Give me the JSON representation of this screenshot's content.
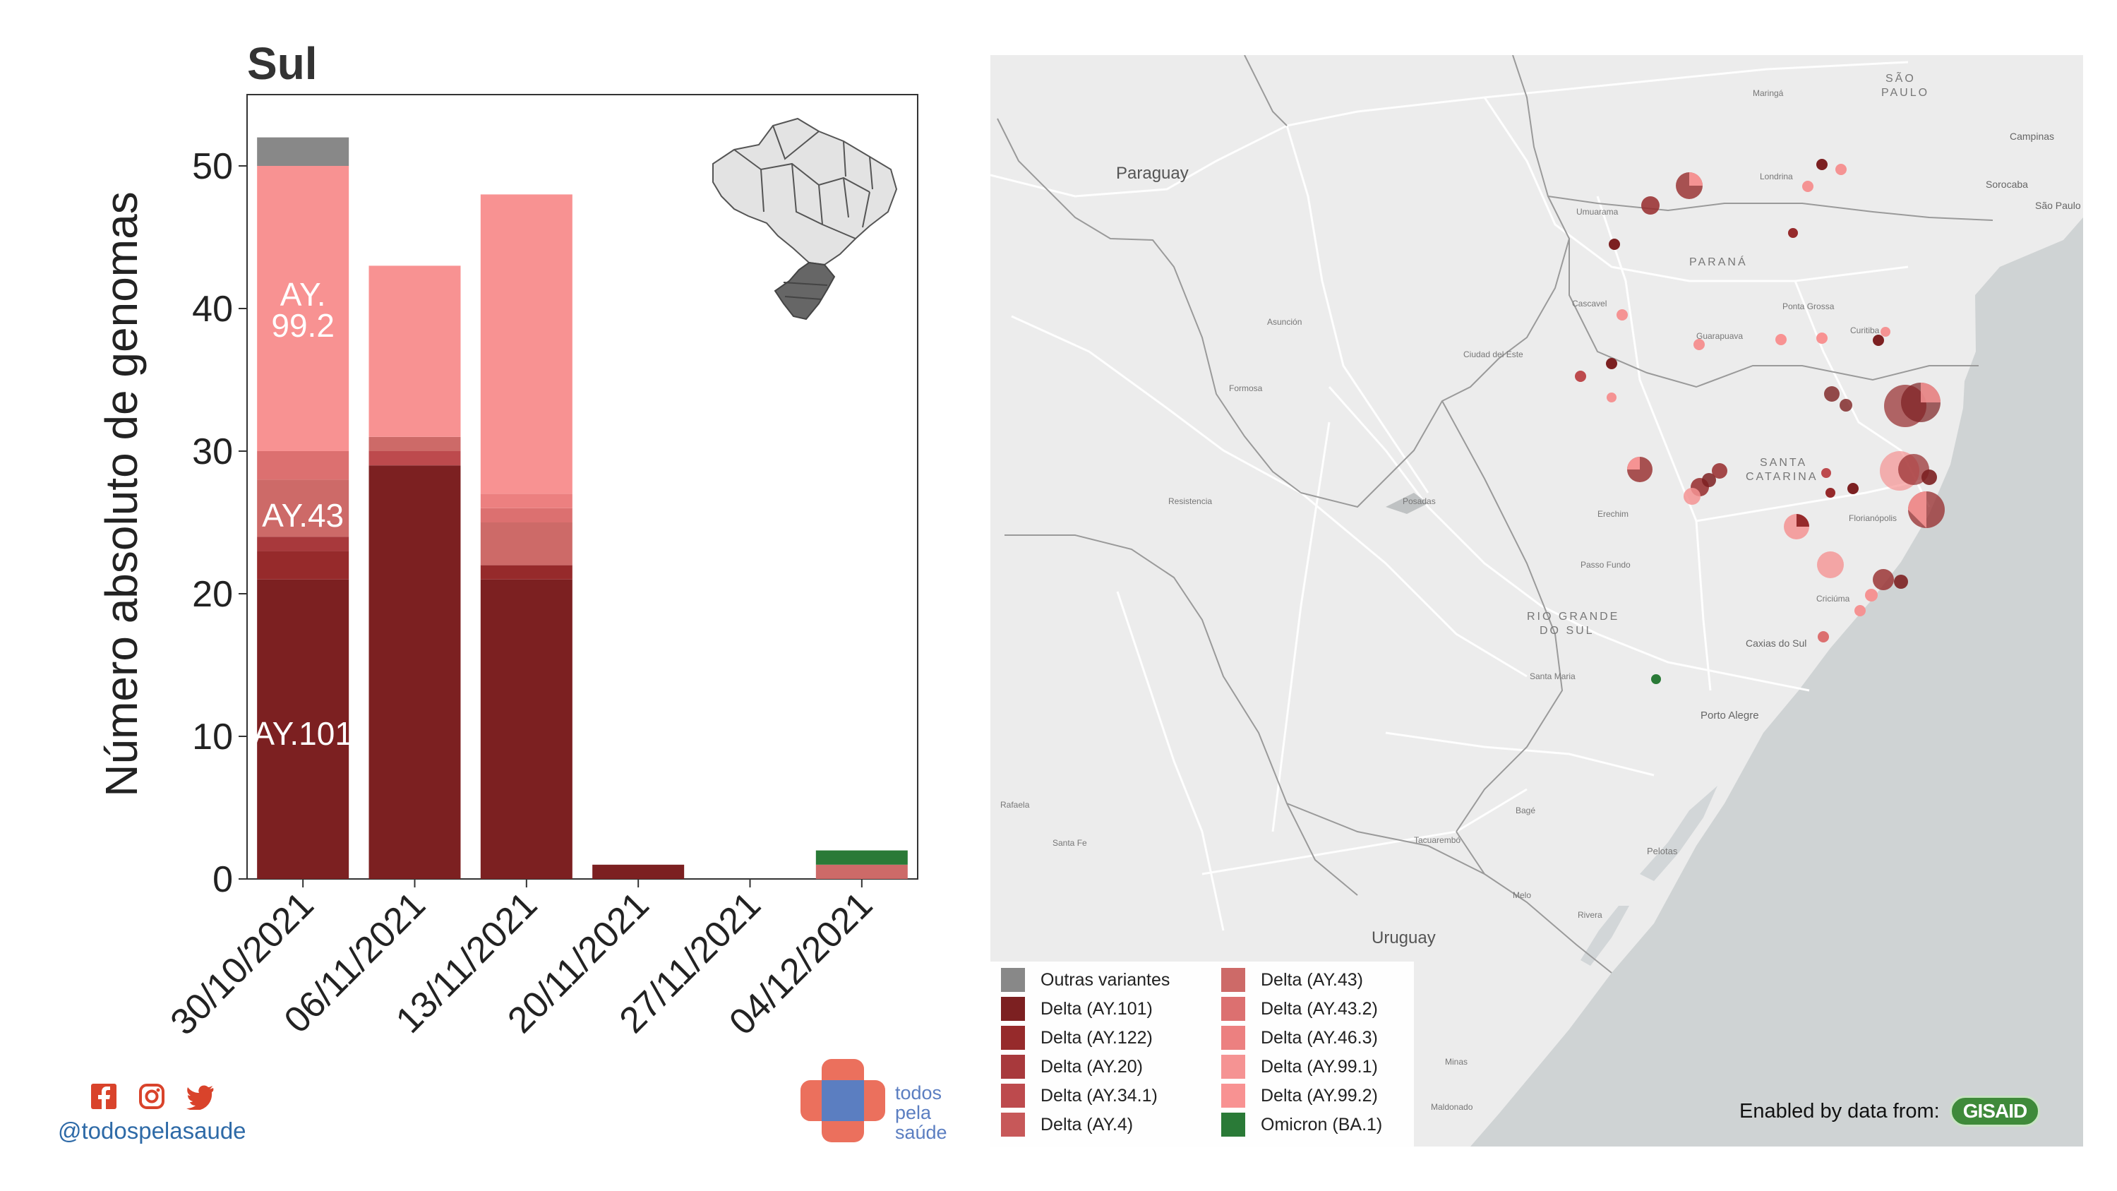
{
  "chart_data": {
    "type": "bar",
    "stacked": true,
    "title": "Sul",
    "xlabel": "",
    "ylabel": "Número absoluto de genomas",
    "ylim": [
      0,
      55
    ],
    "yticks": [
      0,
      10,
      20,
      30,
      40,
      50
    ],
    "grid": false,
    "categories": [
      "30/10/2021",
      "06/11/2021",
      "13/11/2021",
      "20/11/2021",
      "27/11/2021",
      "04/12/2021"
    ],
    "series": [
      {
        "name": "Delta (AY.101)",
        "color": "#7c2021",
        "values": [
          21,
          29,
          21,
          1,
          0,
          0
        ]
      },
      {
        "name": "Delta (AY.122)",
        "color": "#962a2b",
        "values": [
          2,
          0,
          1,
          0,
          0,
          0
        ]
      },
      {
        "name": "Delta (AY.20)",
        "color": "#a8393c",
        "values": [
          1,
          0,
          0,
          0,
          0,
          0
        ]
      },
      {
        "name": "Delta (AY.34.1)",
        "color": "#bd4a4d",
        "values": [
          0,
          1,
          0,
          0,
          0,
          0
        ]
      },
      {
        "name": "Delta (AY.4)",
        "color": "#c75859",
        "values": [
          0,
          0,
          0,
          0,
          0,
          0
        ]
      },
      {
        "name": "Delta (AY.43)",
        "color": "#cd6a68",
        "values": [
          4,
          1,
          3,
          0,
          0,
          1
        ]
      },
      {
        "name": "Delta (AY.43.2)",
        "color": "#dc7070",
        "values": [
          2,
          0,
          1,
          0,
          0,
          0
        ]
      },
      {
        "name": "Delta (AY.46.3)",
        "color": "#ec8080",
        "values": [
          0,
          0,
          1,
          0,
          0,
          0
        ]
      },
      {
        "name": "Delta (AY.99.1)",
        "color": "#f59393",
        "values": [
          0,
          0,
          0,
          0,
          0,
          0
        ]
      },
      {
        "name": "Delta (AY.99.2)",
        "color": "#f89292",
        "values": [
          20,
          12,
          21,
          0,
          0,
          0
        ]
      },
      {
        "name": "Outras variantes",
        "color": "#888888",
        "values": [
          2,
          0,
          0,
          0,
          0,
          0
        ]
      },
      {
        "name": "Omicron (BA.1)",
        "color": "#2a7a37",
        "values": [
          0,
          0,
          0,
          0,
          0,
          1
        ]
      }
    ],
    "annotations": [
      "AY.",
      "99.2",
      "AY.43",
      "AY.101"
    ]
  },
  "map": {
    "labels": {
      "paraguay": "Paraguay",
      "uruguay": "Uruguay",
      "parana": "PARANÁ",
      "santa_catarina_1": "SANTA",
      "santa_catarina_2": "CATARINA",
      "rio_grande_1": "RIO GRANDE",
      "rio_grande_2": "DO SUL",
      "sao_paulo_1": "SÃO",
      "sao_paulo_2": "PAULO",
      "campinas": "Campinas",
      "sao_paulo_city": "São Paulo",
      "sorocaba": "Sorocaba",
      "londrina": "Londrina",
      "maringa": "Maringá",
      "umuarama": "Umuarama",
      "cascavel": "Cascavel",
      "guarapuava": "Guarapuava",
      "ponta_grossa": "Ponta Grossa",
      "curitiba": "Curitiba",
      "ciudad_del_este": "Ciudad del Este",
      "asuncion": "Asunción",
      "formosa": "Formosa",
      "resistencia": "Resistencia",
      "posadas": "Posadas",
      "erechim": "Erechim",
      "passo_fundo": "Passo Fundo",
      "caxias": "Caxias do Sul",
      "porto_alegre": "Porto Alegre",
      "santa_maria": "Santa Maria",
      "pelotas": "Pelotas",
      "florianopolis": "Florianópolis",
      "criciuma": "Criciúma",
      "bage": "Bagé",
      "rafaela": "Rafaela",
      "santa_fe": "Santa Fe",
      "melo": "Melo",
      "minas": "Minas",
      "maldonado": "Maldonado",
      "rivera": "Rivera",
      "tacuarembo": "Tacuarembó"
    },
    "legend": [
      {
        "label": "Outras variantes",
        "color": "#888888"
      },
      {
        "label": "Delta (AY.101)",
        "color": "#7c2021"
      },
      {
        "label": "Delta (AY.122)",
        "color": "#962a2b"
      },
      {
        "label": "Delta (AY.20)",
        "color": "#a8393c"
      },
      {
        "label": "Delta (AY.34.1)",
        "color": "#bd4a4d"
      },
      {
        "label": "Delta (AY.4)",
        "color": "#c75859"
      },
      {
        "label": "Delta (AY.43)",
        "color": "#cd6a68"
      },
      {
        "label": "Delta (AY.43.2)",
        "color": "#dc7070"
      },
      {
        "label": "Delta (AY.46.3)",
        "color": "#ec8080"
      },
      {
        "label": "Delta (AY.99.1)",
        "color": "#f59393"
      },
      {
        "label": "Delta (AY.99.2)",
        "color": "#f89292"
      },
      {
        "label": "Omicron (BA.1)",
        "color": "#2a7a37"
      }
    ],
    "attribution_text": "Enabled by data from:",
    "attribution_logo": "GISAID"
  },
  "footer": {
    "social_icons": [
      "facebook-icon",
      "instagram-icon",
      "twitter-icon"
    ],
    "handle": "@todospelasaude",
    "org_line1": "todos",
    "org_line2": "pela",
    "org_line3": "saúde"
  }
}
